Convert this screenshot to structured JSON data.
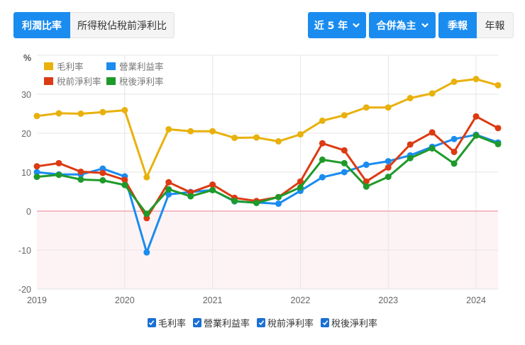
{
  "toolbar": {
    "tabs": [
      {
        "label": "利潤比率",
        "active": true
      },
      {
        "label": "所得稅佔稅前淨利比",
        "active": false
      }
    ],
    "period_range": {
      "label": "近 5 年",
      "icon": "chevron-down-icon"
    },
    "basis": {
      "label": "合併為主",
      "icon": "chevron-down-icon"
    },
    "frequency": [
      {
        "label": "季報",
        "active": true
      },
      {
        "label": "年報",
        "active": false
      }
    ]
  },
  "colors": {
    "accent": "#1a8cf0",
    "gross": "#e8b10c",
    "operating": "#1a8cf0",
    "pretax": "#dc3a12",
    "net": "#1e9a2a",
    "negative_area": "#fdf3f5",
    "zero_line": "#f0a8b4",
    "grid": "#e6e6e6"
  },
  "bottom_legend": [
    {
      "label": "毛利率",
      "checked": true
    },
    {
      "label": "營業利益率",
      "checked": true
    },
    {
      "label": "稅前淨利率",
      "checked": true
    },
    {
      "label": "稅後淨利率",
      "checked": true
    }
  ],
  "chart_data": {
    "type": "line",
    "title": "",
    "ylabel": "%",
    "xlabel": "",
    "ylim": [
      -20,
      40
    ],
    "yticks": [
      -20,
      -10,
      0,
      10,
      20,
      30
    ],
    "xticks": [
      "2019",
      "2020",
      "2021",
      "2022",
      "2023",
      "2024"
    ],
    "grid": true,
    "legend_position": "top-left inside",
    "x": [
      "2019Q1",
      "2019Q2",
      "2019Q3",
      "2019Q4",
      "2020Q1",
      "2020Q2",
      "2020Q3",
      "2020Q4",
      "2021Q1",
      "2021Q2",
      "2021Q3",
      "2021Q4",
      "2022Q1",
      "2022Q2",
      "2022Q3",
      "2022Q4",
      "2023Q1",
      "2023Q2",
      "2023Q3",
      "2023Q4",
      "2024Q1",
      "2024Q2"
    ],
    "series": [
      {
        "name": "毛利率",
        "color": "#e8b10c",
        "values": [
          24.4,
          25.1,
          25.0,
          25.4,
          25.9,
          8.7,
          21.0,
          20.5,
          20.5,
          18.8,
          18.9,
          17.9,
          19.7,
          23.2,
          24.6,
          26.6,
          26.6,
          29.0,
          30.2,
          33.2,
          33.9,
          32.3
        ]
      },
      {
        "name": "營業利益率",
        "color": "#1a8cf0",
        "values": [
          10.0,
          9.4,
          9.4,
          10.9,
          8.9,
          -10.6,
          4.3,
          4.9,
          5.4,
          2.5,
          2.2,
          1.9,
          5.2,
          8.7,
          10.0,
          11.9,
          12.8,
          14.3,
          16.5,
          18.5,
          19.6,
          17.6
        ]
      },
      {
        "name": "稅前淨利率",
        "color": "#dc3a12",
        "values": [
          11.5,
          12.3,
          10.1,
          9.8,
          8.0,
          -1.8,
          7.4,
          4.8,
          6.8,
          3.4,
          2.6,
          3.6,
          7.6,
          17.4,
          15.6,
          7.6,
          11.2,
          17.1,
          20.2,
          15.2,
          24.3,
          21.3
        ]
      },
      {
        "name": "稅後淨利率",
        "color": "#1e9a2a",
        "values": [
          8.8,
          9.3,
          8.1,
          7.9,
          6.7,
          -0.7,
          5.6,
          3.8,
          5.4,
          2.6,
          2.1,
          3.6,
          6.1,
          13.2,
          12.3,
          6.3,
          8.8,
          13.6,
          16.1,
          12.2,
          19.4,
          17.2
        ]
      }
    ]
  }
}
